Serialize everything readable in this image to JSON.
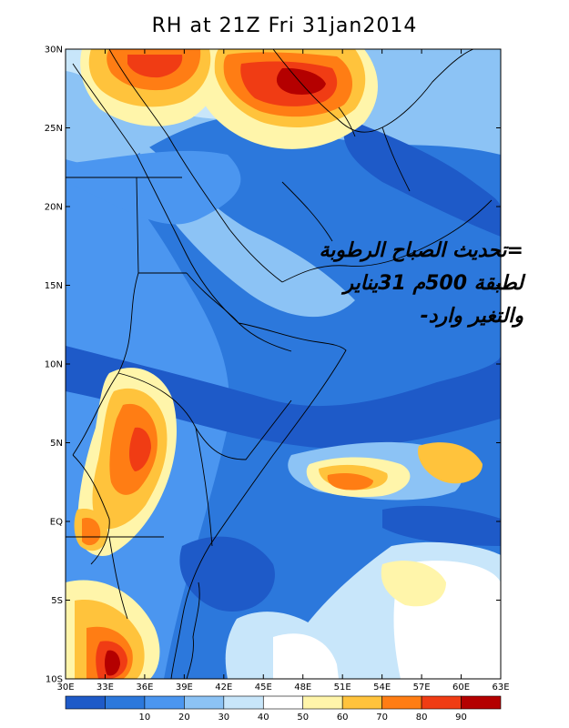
{
  "title": "RH at 21Z Fri 31jan2014",
  "overlay_lines": [
    "=تحديث الصباح الرطوبة",
    "لطبقة 500م 31يناير",
    "والتغير وارد-"
  ],
  "lat_labels": [
    "30N",
    "25N",
    "20N",
    "15N",
    "10N",
    "5N",
    "EQ",
    "5S",
    "10S"
  ],
  "lon_labels": [
    "30E",
    "33E",
    "36E",
    "39E",
    "42E",
    "45E",
    "48E",
    "51E",
    "54E",
    "57E",
    "60E",
    "63E"
  ],
  "colorbar": {
    "colors": [
      "#1e5ac8",
      "#2c78dc",
      "#4b96f0",
      "#8cc3f5",
      "#c8e6fa",
      "#ffffff",
      "#fff5aa",
      "#ffc33c",
      "#ff7d14",
      "#f03c14",
      "#b40000"
    ],
    "tick_labels": [
      "10",
      "20",
      "30",
      "40",
      "50",
      "60",
      "70",
      "80",
      "90"
    ]
  },
  "palette": {
    "deep_blue": "#1e5ac8",
    "blue": "#2c78dc",
    "mid_blue": "#4b96f0",
    "light_blue": "#8cc3f5",
    "pale_blue": "#c8e6fa",
    "pale_yellow": "#fff5aa",
    "orange": "#ffc33c",
    "dark_orange": "#ff7d14",
    "red": "#f03c14",
    "dark_red": "#b40000"
  }
}
